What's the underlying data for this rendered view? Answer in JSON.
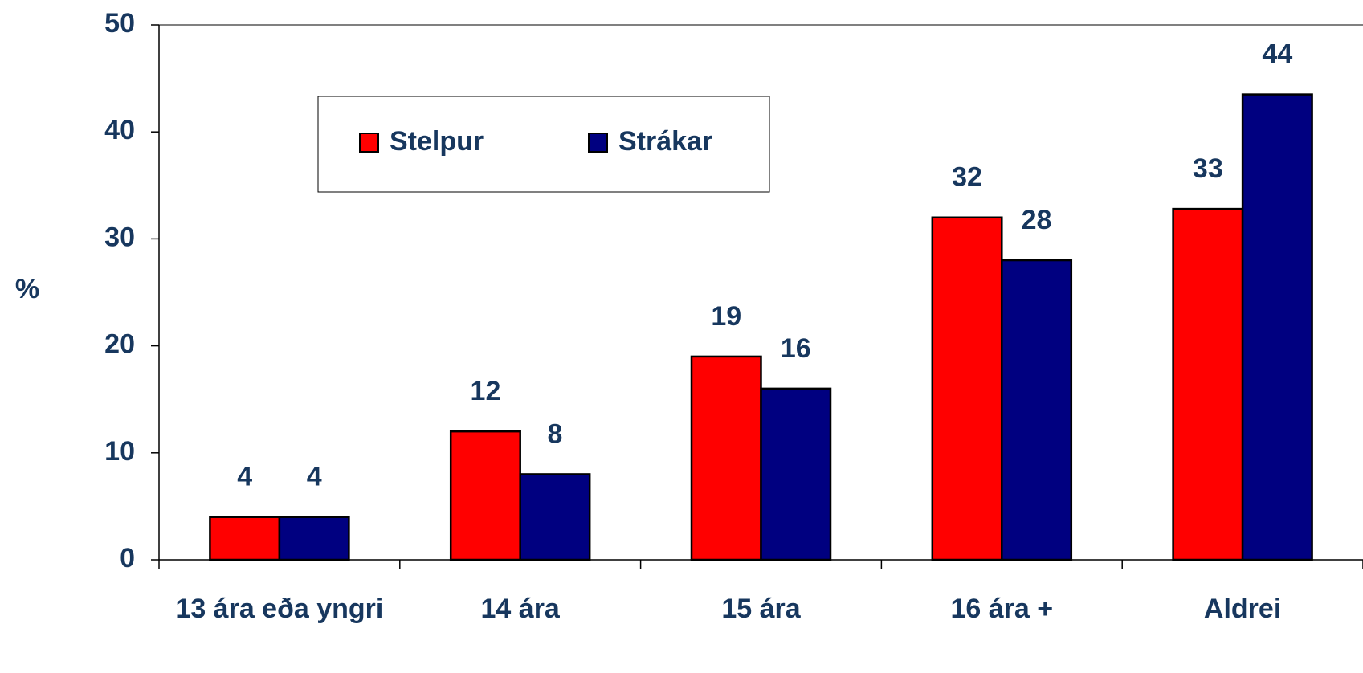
{
  "chart_data": {
    "type": "bar",
    "y_label": "%",
    "categories": [
      "13 ára eða yngri",
      "14 ára",
      "15 ára",
      "16 ára +",
      "Aldrei"
    ],
    "series": [
      {
        "name": "Stelpur",
        "color": "#ff0000",
        "values": [
          4,
          12,
          19,
          32,
          32.8
        ],
        "value_labels": [
          "4",
          "12",
          "19",
          "32",
          "33"
        ]
      },
      {
        "name": "Strákar",
        "color": "#000080",
        "values": [
          4,
          8,
          16,
          28,
          43.5
        ],
        "value_labels": [
          "4",
          "8",
          "16",
          "28",
          "44"
        ]
      }
    ],
    "ylim": [
      0,
      50
    ],
    "yticks": [
      0,
      10,
      20,
      30,
      40,
      50
    ],
    "grid": false,
    "legend": "top-left"
  }
}
